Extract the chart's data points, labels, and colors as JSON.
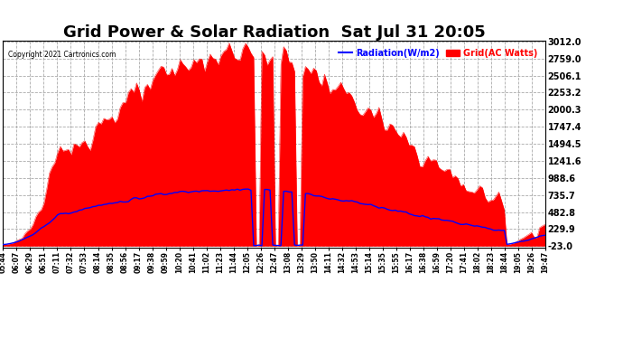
{
  "title": "Grid Power & Solar Radiation  Sat Jul 31 20:05",
  "copyright": "Copyright 2021 Cartronics.com",
  "legend_radiation": "Radiation(W/m2)",
  "legend_grid": "Grid(AC Watts)",
  "y_ticks": [
    3012.0,
    2759.0,
    2506.1,
    2253.2,
    2000.3,
    1747.4,
    1494.5,
    1241.6,
    988.6,
    735.7,
    482.8,
    229.9,
    -23.0
  ],
  "y_min": -23.0,
  "y_max": 3012.0,
  "background_color": "#ffffff",
  "grid_color": "#aaaaaa",
  "radiation_color": "#0000ff",
  "grid_ac_color": "#ff0000",
  "title_fontsize": 13,
  "n_points": 200,
  "x_labels": [
    "05:44",
    "06:07",
    "06:29",
    "06:51",
    "07:11",
    "07:32",
    "07:53",
    "08:14",
    "08:35",
    "08:56",
    "09:17",
    "09:38",
    "09:59",
    "10:20",
    "10:41",
    "11:02",
    "11:23",
    "11:44",
    "12:05",
    "12:26",
    "12:47",
    "13:08",
    "13:29",
    "13:50",
    "14:11",
    "14:32",
    "14:53",
    "15:14",
    "15:35",
    "15:55",
    "16:17",
    "16:38",
    "16:59",
    "17:20",
    "17:41",
    "18:02",
    "18:23",
    "18:44",
    "19:05",
    "19:26",
    "19:47"
  ]
}
